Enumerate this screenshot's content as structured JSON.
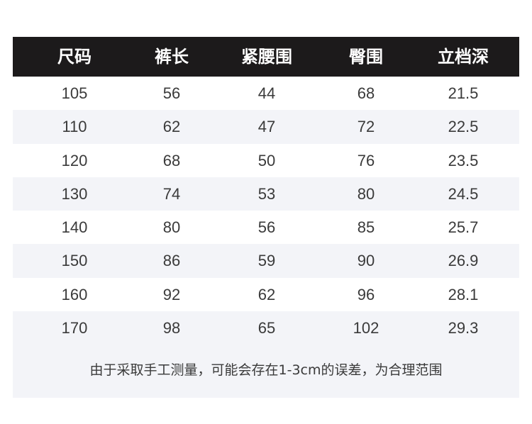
{
  "headers": [
    "尺码",
    "裤长",
    "紧腰围",
    "臀围",
    "立档深"
  ],
  "rows": [
    [
      "105",
      "56",
      "44",
      "68",
      "21.5"
    ],
    [
      "110",
      "62",
      "47",
      "72",
      "22.5"
    ],
    [
      "120",
      "68",
      "50",
      "76",
      "23.5"
    ],
    [
      "130",
      "74",
      "53",
      "80",
      "24.5"
    ],
    [
      "140",
      "80",
      "56",
      "85",
      "25.7"
    ],
    [
      "150",
      "86",
      "59",
      "90",
      "26.9"
    ],
    [
      "160",
      "92",
      "62",
      "96",
      "28.1"
    ],
    [
      "170",
      "98",
      "65",
      "102",
      "29.3"
    ]
  ],
  "footnote": "由于采取手工测量，可能会存在1-3cm的误差，为合理范围",
  "colors": {
    "header_bg": "#1c1a1b",
    "stripe_bg": "#f3f4f8",
    "text": "#3a3a3a"
  }
}
